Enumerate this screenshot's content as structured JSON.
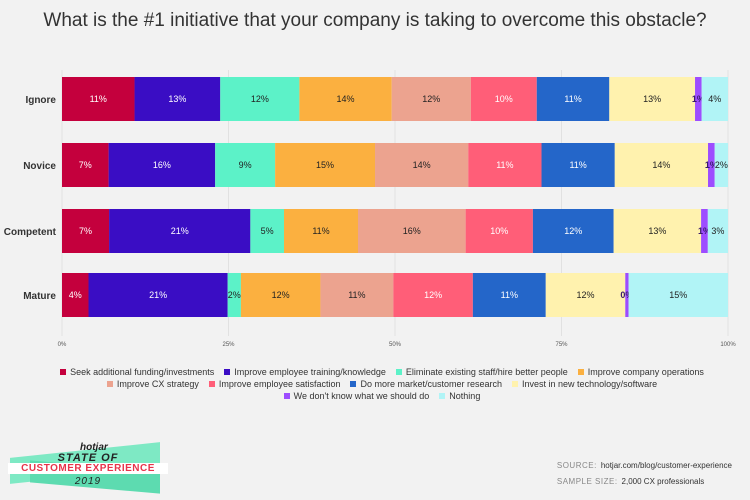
{
  "title": "What is the #1 initiative that your company is taking to overcome this obstacle?",
  "chart_data": {
    "type": "bar",
    "orientation": "horizontal",
    "stacked": true,
    "title": "What is the #1 initiative that your company is taking to overcome this obstacle?",
    "categories": [
      "Ignore",
      "Novice",
      "Competent",
      "Mature"
    ],
    "xlim": [
      0,
      100
    ],
    "x_ticks": [
      "0%",
      "25%",
      "50%",
      "75%",
      "100%"
    ],
    "legend_position": "bottom",
    "series": [
      {
        "name": "Seek additional funding/investments",
        "color": "#c4003d",
        "values": [
          11,
          7,
          7,
          4
        ],
        "labels": [
          "11%",
          "7%",
          "7%",
          "4%"
        ]
      },
      {
        "name": "Improve employee training/knowledge",
        "color": "#3a0dc4",
        "values": [
          13,
          16,
          21,
          21
        ],
        "labels": [
          "13%",
          "16%",
          "21%",
          "21%"
        ]
      },
      {
        "name": "Eliminate existing staff/hire better people",
        "color": "#5cf2c8",
        "values": [
          12,
          9,
          5,
          2
        ],
        "labels": [
          "12%",
          "9%",
          "5%",
          "2%"
        ]
      },
      {
        "name": "Improve company operations",
        "color": "#fbb040",
        "values": [
          14,
          15,
          11,
          12
        ],
        "labels": [
          "14%",
          "15%",
          "11%",
          "12%"
        ]
      },
      {
        "name": "Improve CX strategy",
        "color": "#eca38f",
        "values": [
          12,
          14,
          16,
          11
        ],
        "labels": [
          "12%",
          "14%",
          "16%",
          "11%"
        ]
      },
      {
        "name": "Improve employee satisfaction",
        "color": "#ff5e78",
        "values": [
          10,
          11,
          10,
          12
        ],
        "labels": [
          "10%",
          "11%",
          "10%",
          "12%"
        ]
      },
      {
        "name": "Do more market/customer research",
        "color": "#2466c9",
        "values": [
          11,
          11,
          12,
          11
        ],
        "labels": [
          "11%",
          "11%",
          "12%",
          "11%"
        ]
      },
      {
        "name": "Invest in new technology/software",
        "color": "#fff2ae",
        "values": [
          13,
          14,
          13,
          12
        ],
        "labels": [
          "13%",
          "14%",
          "13%",
          "12%"
        ]
      },
      {
        "name": "We don't know what we should do",
        "color": "#9d4dff",
        "values": [
          1,
          1,
          1,
          0.5
        ],
        "labels": [
          "1%",
          "1%",
          "1%",
          "0%"
        ]
      },
      {
        "name": "Nothing",
        "color": "#b1f4f6",
        "values": [
          4,
          2,
          3,
          15
        ],
        "labels": [
          "4%",
          "2%",
          "3%",
          "15%"
        ]
      }
    ]
  },
  "logo": {
    "brand": "hotjar",
    "line1": "STATE OF",
    "line2": "CUSTOMER EXPERIENCE",
    "line3": "2019"
  },
  "source": {
    "source_label": "SOURCE:",
    "source_value": "hotjar.com/blog/customer-experience",
    "sample_label": "SAMPLE SIZE:",
    "sample_value": "2,000 CX professionals"
  }
}
